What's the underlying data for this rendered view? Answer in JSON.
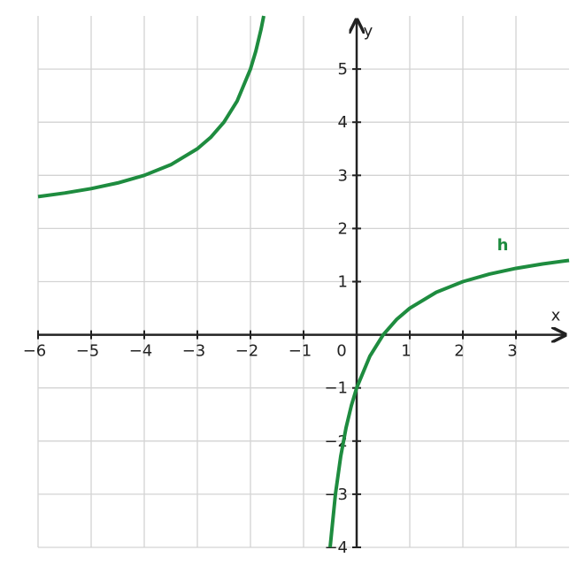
{
  "chart_data": {
    "type": "line",
    "x_label": "x",
    "y_label": "y",
    "x": [
      -6,
      -5.5,
      -5,
      -4.5,
      -4,
      -3.5,
      -3,
      -2.75,
      -2.5,
      -2.25,
      -2,
      -1.9,
      -1.8,
      -1.75,
      -1,
      -0.5,
      -0.4,
      -0.3,
      -0.2,
      -0.1,
      0,
      0.25,
      0.5,
      0.75,
      1,
      1.5,
      2,
      2.5,
      3,
      3.5,
      4
    ],
    "series": [
      {
        "name": "h",
        "color": "#1e8c3f",
        "values": [
          2.6,
          2.667,
          2.75,
          2.857,
          3,
          3.2,
          3.5,
          3.714,
          4,
          4.4,
          5,
          5.333,
          5.75,
          6,
          null,
          -4,
          -3,
          -2.286,
          -1.75,
          -1.333,
          -1,
          -0.4,
          0,
          0.286,
          0.5,
          0.8,
          1,
          1.143,
          1.25,
          1.333,
          1.4
        ]
      }
    ],
    "xlim": [
      -6,
      4
    ],
    "ylim": [
      -4,
      6
    ],
    "xticks": [
      {
        "value": -6,
        "label": "−6"
      },
      {
        "value": -5,
        "label": "−5"
      },
      {
        "value": -4,
        "label": "−4"
      },
      {
        "value": -3,
        "label": "−3"
      },
      {
        "value": -2,
        "label": "−2"
      },
      {
        "value": -1,
        "label": "−1"
      },
      0,
      1,
      2,
      3
    ],
    "yticks": [
      {
        "value": -4,
        "label": "−4"
      },
      {
        "value": -3,
        "label": "−3"
      },
      {
        "value": -2,
        "label": "−2"
      },
      {
        "value": -1,
        "label": "−1"
      },
      1,
      2,
      3,
      4,
      5
    ],
    "grid": true
  }
}
